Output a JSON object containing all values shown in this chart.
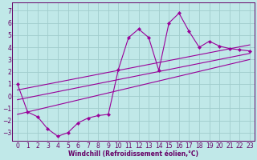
{
  "xlabel": "Windchill (Refroidissement éolien,°C)",
  "bg_color": "#c0e8e8",
  "grid_color": "#a0cccc",
  "line_color": "#990099",
  "spine_color": "#660066",
  "xlim": [
    -0.5,
    23.5
  ],
  "ylim": [
    -3.7,
    7.7
  ],
  "xticks": [
    0,
    1,
    2,
    3,
    4,
    5,
    6,
    7,
    8,
    9,
    10,
    11,
    12,
    13,
    14,
    15,
    16,
    17,
    18,
    19,
    20,
    21,
    22,
    23
  ],
  "yticks": [
    -3,
    -2,
    -1,
    0,
    1,
    2,
    3,
    4,
    5,
    6,
    7
  ],
  "main_x": [
    0,
    1,
    2,
    3,
    4,
    5,
    6,
    7,
    8,
    9,
    10,
    11,
    12,
    13,
    14,
    15,
    16,
    17,
    18,
    19,
    20,
    21,
    22,
    23
  ],
  "main_y": [
    1.0,
    -1.3,
    -1.7,
    -2.7,
    -3.3,
    -3.0,
    -2.2,
    -1.8,
    -1.6,
    -1.5,
    2.2,
    4.8,
    5.5,
    4.8,
    2.1,
    6.0,
    6.8,
    5.3,
    4.0,
    4.5,
    4.1,
    3.9,
    3.8,
    3.7
  ],
  "line1_x": [
    0,
    23
  ],
  "line1_y": [
    -0.3,
    3.5
  ],
  "line2_x": [
    0,
    23
  ],
  "line2_y": [
    0.5,
    4.2
  ],
  "line3_x": [
    0,
    23
  ],
  "line3_y": [
    -1.5,
    3.0
  ],
  "tick_fontsize": 5.5,
  "xlabel_fontsize": 5.5
}
